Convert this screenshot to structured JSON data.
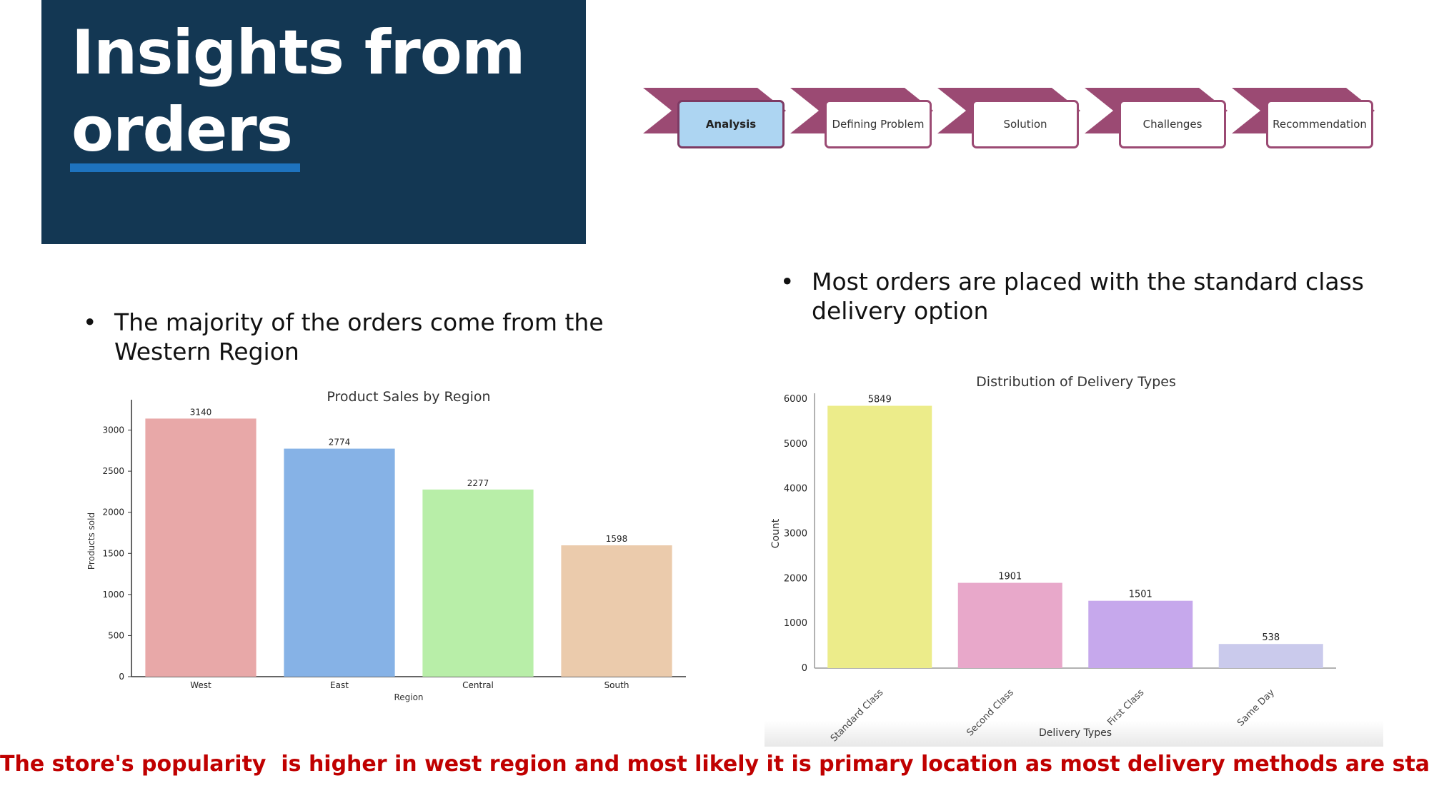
{
  "title": {
    "line1": "Insights from",
    "line2": "orders"
  },
  "process_steps": [
    {
      "label": "Analysis",
      "active": true
    },
    {
      "label": "Defining Problem",
      "active": false
    },
    {
      "label": "Solution",
      "active": false
    },
    {
      "label": "Challenges",
      "active": false
    },
    {
      "label": "Recommendation",
      "active": false
    }
  ],
  "colors": {
    "title_bg": "#133753",
    "accent": "#1e73be",
    "chevron": "#9b4a73",
    "active_step": "#add5f2",
    "footer_text": "#c00000"
  },
  "bullets": {
    "left": {
      "symbol": "•",
      "line1": "The majority of the orders come from the",
      "line2": "Western Region"
    },
    "right": {
      "symbol": "•",
      "line1": "Most orders are placed with the standard class",
      "line2": "delivery option"
    }
  },
  "footer": "The store's popularity  is higher in west region and most likely it is primary location as most delivery methods are standard",
  "chart_data": [
    {
      "type": "bar",
      "title": "Product Sales by Region",
      "xlabel": "Region",
      "ylabel": "Products sold",
      "categories": [
        "West",
        "East",
        "Central",
        "South"
      ],
      "values": [
        3140,
        2774,
        2277,
        1598
      ],
      "data_labels": [
        "3140",
        "2774",
        "2277",
        "1598"
      ],
      "colors": [
        "#e8a8a8",
        "#86b2e6",
        "#b8eea8",
        "#ebcbac"
      ],
      "yticks": [
        "0",
        "500",
        "1000",
        "1500",
        "2000",
        "2500",
        "3000"
      ],
      "ylim": [
        0,
        3300
      ],
      "grid": false
    },
    {
      "type": "bar",
      "title": "Distribution of Delivery Types",
      "xlabel": "Delivery Types",
      "ylabel": "Count",
      "categories": [
        "Standard Class",
        "Second Class",
        "First Class",
        "Same Day"
      ],
      "values": [
        5849,
        1901,
        1501,
        538
      ],
      "data_labels": [
        "5849",
        "1901",
        "1501",
        "538"
      ],
      "colors": [
        "#ecec8a",
        "#e8a8ca",
        "#c6a8ec",
        "#cacaec"
      ],
      "yticks": [
        "0",
        "1000",
        "2000",
        "3000",
        "4000",
        "5000",
        "6000"
      ],
      "ylim": [
        0,
        6000
      ],
      "grid": false
    }
  ]
}
